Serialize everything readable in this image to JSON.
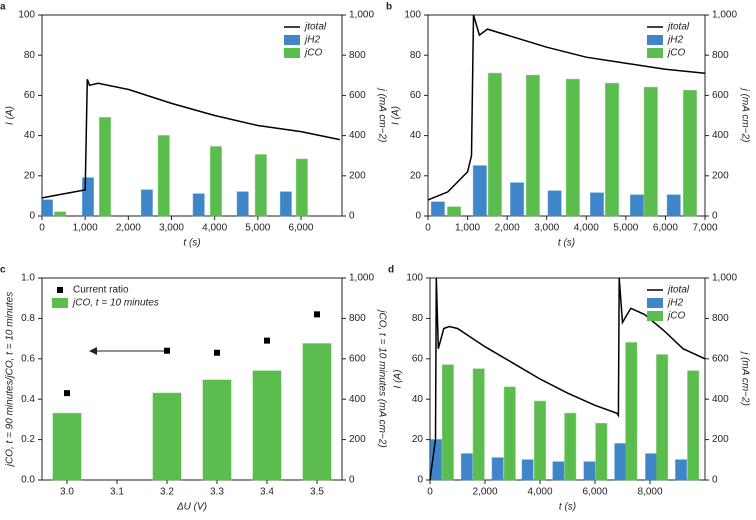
{
  "chart_data": [
    {
      "type": "combo",
      "label": "a",
      "xlabel": "t (s)",
      "ylabel": "I (A)",
      "y2label": "j (mA cm−2)",
      "xlim": [
        0,
        6950
      ],
      "xticks": [
        0,
        {
          "value": 1000,
          "label": "1,000"
        },
        {
          "value": 2000,
          "label": "2,000"
        },
        {
          "value": 3000,
          "label": "3,000"
        },
        {
          "value": 4000,
          "label": "4,000"
        },
        {
          "value": 5000,
          "label": "5,000"
        },
        {
          "value": 6000,
          "label": "6,000"
        }
      ],
      "ylim": [
        0,
        100
      ],
      "yticks": [
        0,
        20,
        40,
        60,
        80,
        100
      ],
      "y2lim": [
        0,
        1000
      ],
      "y2ticks": [
        0,
        200,
        400,
        600,
        800,
        {
          "value": 1000,
          "label": "1,000"
        }
      ],
      "legend": "upper right",
      "series": [
        {
          "name": "jtotal",
          "kind": "line",
          "axis": "y2",
          "color": "#000000",
          "x": [
            0,
            500,
            1000,
            1050,
            1100,
            1300,
            2000,
            3000,
            4000,
            5000,
            6000,
            6900
          ],
          "values": [
            90,
            110,
            130,
            680,
            650,
            660,
            630,
            560,
            500,
            450,
            420,
            380
          ]
        },
        {
          "name": "jH2",
          "kind": "bar",
          "axis": "y2",
          "color": "#3f86c8",
          "x": [
            116,
            1065,
            2430,
            3630,
            4650,
            5650
          ],
          "values": [
            80,
            190,
            130,
            110,
            120,
            120
          ]
        },
        {
          "name": "jCO",
          "kind": "bar",
          "axis": "y2",
          "color": "#5cbd4f",
          "x": [
            420,
            1460,
            2820,
            4030,
            5070,
            6020
          ],
          "values": [
            20,
            490,
            400,
            345,
            305,
            283
          ]
        }
      ]
    },
    {
      "type": "combo",
      "label": "b",
      "xlabel": "t (s)",
      "ylabel": "I (A)",
      "y2label": "j (mA cm−2)",
      "xlim": [
        0,
        7000
      ],
      "xticks": [
        0,
        {
          "value": 1000,
          "label": "1,000"
        },
        {
          "value": 2000,
          "label": "2,000"
        },
        {
          "value": 3000,
          "label": "3,000"
        },
        {
          "value": 4000,
          "label": "4,000"
        },
        {
          "value": 5000,
          "label": "5,000"
        },
        {
          "value": 6000,
          "label": "6,000"
        },
        {
          "value": 7000,
          "label": "7,000"
        }
      ],
      "ylim": [
        0,
        100
      ],
      "yticks": [
        0,
        20,
        40,
        60,
        80,
        100
      ],
      "y2lim": [
        0,
        1000
      ],
      "y2ticks": [
        0,
        200,
        400,
        600,
        800,
        {
          "value": 1000,
          "label": "1,000"
        }
      ],
      "legend": "upper right",
      "series": [
        {
          "name": "jtotal",
          "kind": "line",
          "axis": "y2",
          "color": "#000000",
          "x": [
            0,
            500,
            1000,
            1100,
            1150,
            1300,
            1500,
            2000,
            3000,
            4000,
            5000,
            6000,
            7000
          ],
          "values": [
            80,
            120,
            220,
            300,
            1000,
            900,
            930,
            900,
            840,
            790,
            760,
            730,
            710
          ]
        },
        {
          "name": "jH2",
          "kind": "bar",
          "axis": "y2",
          "color": "#3f86c8",
          "x": [
            250,
            1310,
            2250,
            3200,
            4270,
            5280,
            6210
          ],
          "values": [
            70,
            250,
            165,
            125,
            115,
            105,
            105
          ]
        },
        {
          "name": "jCO",
          "kind": "bar",
          "axis": "y2",
          "color": "#5cbd4f",
          "x": [
            660,
            1690,
            2650,
            3660,
            4650,
            5630,
            6620
          ],
          "values": [
            45,
            710,
            700,
            680,
            660,
            640,
            625
          ]
        }
      ]
    },
    {
      "type": "combo",
      "label": "c",
      "xlabel": "ΔU (V)",
      "ylabel": "jCO, t = 90 minutes/jCO, t = 10 minutes",
      "y2label": "jCO, t = 10 minutes (mA cm−2)",
      "xlim": [
        2.95,
        3.55
      ],
      "xticks": [
        {
          "value": 3,
          "label": "3.0"
        },
        3.1,
        3.2,
        3.3,
        3.4,
        3.5
      ],
      "ylim": [
        0,
        1
      ],
      "yticks": [
        {
          "value": 0,
          "label": "0.0"
        },
        0.2,
        0.4,
        0.6,
        0.8,
        {
          "value": 1,
          "label": "1.0"
        }
      ],
      "y2lim": [
        0,
        1000
      ],
      "y2ticks": [
        0,
        200,
        400,
        600,
        800,
        {
          "value": 1000,
          "label": "1,000"
        }
      ],
      "legend": "upper left",
      "series": [
        {
          "name": "Current ratio",
          "kind": "scatter",
          "axis": "y",
          "color": "#000000",
          "x": [
            3,
            3.2,
            3.3,
            3.4,
            3.5
          ],
          "values": [
            0.43,
            0.64,
            0.63,
            0.69,
            0.82
          ]
        },
        {
          "name": "jCO, t = 10 minutes",
          "kind": "bar",
          "axis": "y2",
          "color": "#5cbd4f",
          "x": [
            3,
            3.2,
            3.3,
            3.4,
            3.5
          ],
          "values": [
            330,
            430,
            495,
            540,
            675
          ]
        }
      ]
    },
    {
      "type": "combo",
      "label": "d",
      "xlabel": "t (s)",
      "ylabel": "I (A)",
      "y2label": "j (mA cm−2)",
      "xlim": [
        0,
        10000
      ],
      "xticks": [
        0,
        {
          "value": 2000,
          "label": "2,000"
        },
        {
          "value": 4000,
          "label": "4,000"
        },
        {
          "value": 6000,
          "label": "6,000"
        },
        {
          "value": 8000,
          "label": "8,000"
        }
      ],
      "ylim": [
        0,
        100
      ],
      "yticks": [
        0,
        20,
        40,
        60,
        80,
        100
      ],
      "y2lim": [
        0,
        1000
      ],
      "y2ticks": [
        0,
        200,
        400,
        600,
        800,
        {
          "value": 1000,
          "label": "1,000"
        }
      ],
      "legend": "upper right",
      "series": [
        {
          "name": "jtotal",
          "kind": "line",
          "axis": "y2",
          "color": "#000000",
          "x": [
            0,
            150,
            200,
            230,
            300,
            500,
            700,
            1000,
            2000,
            3000,
            4000,
            5000,
            6000,
            6800,
            6850,
            6880,
            7000,
            7300,
            7800,
            8500,
            9200,
            10000
          ],
          "values": [
            0,
            150,
            200,
            1000,
            650,
            750,
            760,
            750,
            660,
            580,
            500,
            430,
            370,
            330,
            320,
            1000,
            780,
            850,
            820,
            740,
            650,
            600
          ]
        },
        {
          "name": "jH2",
          "kind": "bar",
          "axis": "y2",
          "color": "#3f86c8",
          "x": [
            220,
            1340,
            2460,
            3550,
            4670,
            5800,
            6920,
            8040,
            9130
          ],
          "values": [
            200,
            130,
            110,
            100,
            90,
            90,
            180,
            130,
            100
          ]
        },
        {
          "name": "jCO",
          "kind": "bar",
          "axis": "y2",
          "color": "#5cbd4f",
          "x": [
            650,
            1770,
            2900,
            4000,
            5100,
            6230,
            7320,
            8440,
            9570
          ],
          "values": [
            570,
            550,
            460,
            390,
            330,
            280,
            680,
            620,
            540
          ]
        }
      ]
    }
  ]
}
